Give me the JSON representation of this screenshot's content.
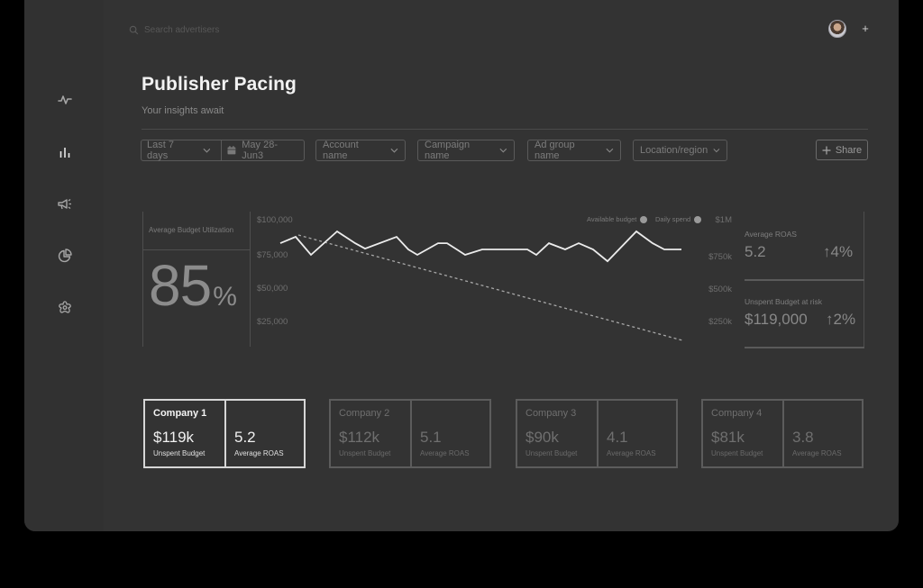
{
  "header": {
    "search_placeholder": "Search advertisers",
    "add_label": "+"
  },
  "sidebar": {
    "items": [
      {
        "icon": "activity-icon"
      },
      {
        "icon": "bar-chart-icon",
        "active": true
      },
      {
        "icon": "megaphone-icon"
      },
      {
        "icon": "pie-chart-icon"
      },
      {
        "icon": "settings-flower-icon"
      }
    ]
  },
  "page": {
    "title": "Publisher Pacing",
    "subtitle": "Your insights await"
  },
  "filters": {
    "date_preset": "Last 7 days",
    "date_range": "May 28-Jun3",
    "account": "Account name",
    "campaign": "Campaign name",
    "ad_group": "Ad group name",
    "location": "Location/region",
    "share_label": "Share"
  },
  "kpi": {
    "label": "Average Budget Utilization",
    "value": "85",
    "unit": "%"
  },
  "chart": {
    "legend": {
      "available_budget": "Available budget",
      "daily_spend": "Daily spend"
    },
    "left_axis": [
      "$100,000",
      "$75,000",
      "$50,000",
      "$25,000"
    ],
    "right_axis": [
      "$1M",
      "$750k",
      "$500k",
      "$250k"
    ]
  },
  "chart_data": {
    "type": "line",
    "title": "",
    "xlabel": "",
    "ylabel": "",
    "ylim": [
      0,
      100000
    ],
    "y2lim": [
      0,
      1000000
    ],
    "left_ticks": [
      "$100,000",
      "$75,000",
      "$50,000",
      "$25,000"
    ],
    "right_ticks": [
      "$1M",
      "$750k",
      "$500k",
      "$250k"
    ],
    "legend": [
      "Available budget",
      "Daily spend"
    ],
    "legend_position": "top-right",
    "grid": false,
    "series": [
      {
        "name": "Daily spend",
        "style": "solid",
        "values": [
          82700,
          87400,
          74100,
          91400,
          82700,
          78700,
          87400,
          78100,
          74100,
          82700,
          82700,
          74100,
          78100,
          78100,
          74100,
          82700,
          78100,
          82700,
          78100,
          69400,
          91400,
          82700,
          78100,
          78100
        ]
      },
      {
        "name": "Available budget",
        "style": "dashed",
        "values_axis": "right",
        "start": 880000,
        "end": 20000
      }
    ]
  },
  "stats": [
    {
      "label": "Average ROAS",
      "value": "5.2",
      "delta": "4%",
      "arrow": "↑"
    },
    {
      "label": "Unspent Budget at risk",
      "value": "$119,000",
      "delta": "2%",
      "arrow": "↑"
    }
  ],
  "companies": [
    {
      "name": "Company 1",
      "unspent": "$119k",
      "unspent_label": "Unspent Budget",
      "roas": "5.2",
      "roas_label": "Average ROAS",
      "active": true
    },
    {
      "name": "Company 2",
      "unspent": "$112k",
      "unspent_label": "Unspent Budget",
      "roas": "5.1",
      "roas_label": "Average ROAS"
    },
    {
      "name": "Company 3",
      "unspent": "$90k",
      "unspent_label": "Unspent Budget",
      "roas": "4.1",
      "roas_label": "Average ROAS"
    },
    {
      "name": "Company 4",
      "unspent": "$81k",
      "unspent_label": "Unspent Budget",
      "roas": "3.8",
      "roas_label": "Average ROAS"
    }
  ],
  "colors": {
    "window_bg": "#333333",
    "outer_bg": "#000000",
    "title": "#f2f2f2",
    "line": "#e8e8e8",
    "border_muted": "#5c5c5c",
    "border_active": "#d6d6d6"
  }
}
